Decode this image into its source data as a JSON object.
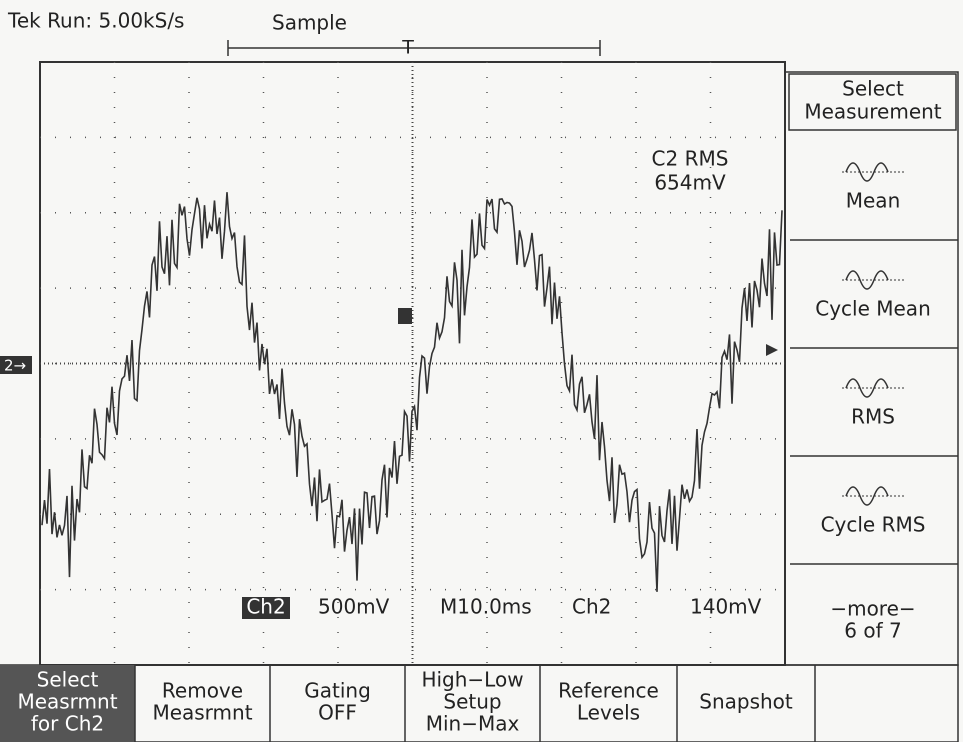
{
  "header": {
    "status": "Tek Run: 5.00kS/s",
    "mode": "Sample",
    "trigger_marker": "T"
  },
  "screen": {
    "channel_marker": "2→",
    "measurement": {
      "name": "C2 RMS",
      "value": "654mV"
    },
    "status_line": {
      "channel": "Ch2",
      "volts_per_div": "500mV",
      "time_per_div": "M10.0ms",
      "trigger_source": "Ch2",
      "trigger_level": "140mV"
    }
  },
  "side_menu": {
    "title": "Select Measurement",
    "items": [
      "Mean",
      "Cycle Mean",
      "RMS",
      "Cycle RMS"
    ],
    "more": "−more−",
    "page": "6 of 7"
  },
  "bottom_menu": [
    {
      "lines": [
        "Select",
        "Measrmnt",
        "for Ch2"
      ]
    },
    {
      "lines": [
        "Remove",
        "Measrmnt"
      ]
    },
    {
      "lines": [
        "Gating",
        "OFF"
      ]
    },
    {
      "lines": [
        "High−Low",
        "Setup",
        "Min−Max"
      ]
    },
    {
      "lines": [
        "Reference",
        "Levels"
      ]
    },
    {
      "lines": [
        "Snapshot"
      ]
    },
    {
      "lines": []
    }
  ]
}
